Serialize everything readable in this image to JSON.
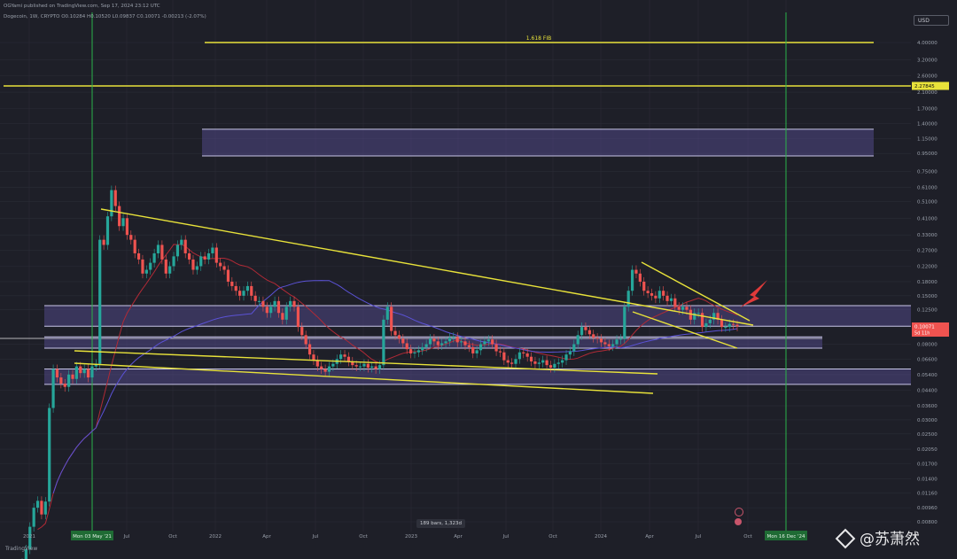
{
  "header": {
    "line1": "OGYami published on TradingView.com, Sep 17, 2024 23:12 UTC",
    "line2": "Dogecoin, 1W, CRYPTO  O0.10284  H0.10520  L0.09837  C0.10071  -0.00213 (-2.07%)"
  },
  "currency": "USD",
  "branding": {
    "tv": "TradingView",
    "watermark": "@苏萧然"
  },
  "badges": {
    "bars_range": "189 bars, 1,323d"
  },
  "colors": {
    "background": "#1e1f28",
    "fib": "#e8e23a",
    "zone": "#5a4f9a",
    "up": "#26a69a",
    "down": "#ef5350",
    "ma_red": "#b02a36",
    "ma_blue": "#5b52d6",
    "marker": "#2bb34a",
    "arrow": "#e03a3a"
  },
  "chart_data": {
    "type": "candlestick",
    "symbol": "Dogecoin",
    "interval": "1W",
    "scale": "log",
    "price_axis_labels": [
      "4.00000",
      "3.20000",
      "2.60000",
      "2.10000",
      "1.70000",
      "1.40000",
      "1.15000",
      "0.95000",
      "0.75000",
      "0.61000",
      "0.51000",
      "0.41000",
      "0.33000",
      "0.27000",
      "0.22000",
      "0.18000",
      "0.15000",
      "0.12500",
      "0.08000",
      "0.06600",
      "0.05400",
      "0.04400",
      "0.03600",
      "0.03000",
      "0.02500",
      "0.02050",
      "0.01700",
      "0.01400",
      "0.01160",
      "0.00960",
      "0.00800"
    ],
    "price_axis_values": [
      4.0,
      3.2,
      2.6,
      2.1,
      1.7,
      1.4,
      1.15,
      0.95,
      0.75,
      0.61,
      0.51,
      0.41,
      0.33,
      0.27,
      0.22,
      0.18,
      0.15,
      0.125,
      0.08,
      0.066,
      0.054,
      0.044,
      0.036,
      0.03,
      0.025,
      0.0205,
      0.017,
      0.014,
      0.0116,
      0.0096,
      0.008
    ],
    "time_axis_labels": [
      "2021",
      "Mon 03 May '21",
      "Jul",
      "Oct",
      "2022",
      "Apr",
      "Jul",
      "Oct",
      "2023",
      "Apr",
      "Jul",
      "Oct",
      "2024",
      "Apr",
      "Jul",
      "Oct",
      "Mon 16 Dec '24"
    ],
    "price_tags": [
      {
        "label": "2.27845",
        "value": 2.27845,
        "color": "#e8e23a"
      },
      {
        "label": "0.10071",
        "sub": "5d 11h",
        "value": 0.10071,
        "color": "#ef5350"
      }
    ],
    "horizontal_levels": [
      {
        "label": "1.618 FIB",
        "value": 4.0,
        "color": "#e8e23a"
      },
      {
        "label": "",
        "value": 2.27845,
        "color": "#e8e23a"
      }
    ],
    "zones": [
      {
        "top": 1.3,
        "bottom": 0.92
      },
      {
        "top": 0.132,
        "bottom": 0.101
      },
      {
        "top": 0.088,
        "bottom": 0.076
      },
      {
        "top": 0.058,
        "bottom": 0.0475
      }
    ],
    "weekly_close": [
      0.0047,
      0.0056,
      0.0075,
      0.0096,
      0.0105,
      0.0088,
      0.0104,
      0.035,
      0.058,
      0.052,
      0.048,
      0.046,
      0.054,
      0.051,
      0.06,
      0.055,
      0.058,
      0.052,
      0.06,
      0.062,
      0.31,
      0.29,
      0.42,
      0.59,
      0.48,
      0.37,
      0.41,
      0.33,
      0.31,
      0.26,
      0.24,
      0.2,
      0.21,
      0.23,
      0.26,
      0.29,
      0.24,
      0.2,
      0.22,
      0.25,
      0.29,
      0.31,
      0.26,
      0.24,
      0.21,
      0.22,
      0.25,
      0.24,
      0.26,
      0.28,
      0.23,
      0.22,
      0.21,
      0.18,
      0.17,
      0.16,
      0.15,
      0.16,
      0.17,
      0.15,
      0.14,
      0.14,
      0.13,
      0.12,
      0.13,
      0.14,
      0.12,
      0.11,
      0.13,
      0.14,
      0.13,
      0.1,
      0.09,
      0.08,
      0.07,
      0.065,
      0.06,
      0.058,
      0.056,
      0.06,
      0.062,
      0.066,
      0.07,
      0.068,
      0.064,
      0.061,
      0.06,
      0.06,
      0.062,
      0.059,
      0.06,
      0.058,
      0.061,
      0.11,
      0.13,
      0.095,
      0.09,
      0.086,
      0.081,
      0.075,
      0.071,
      0.072,
      0.074,
      0.077,
      0.08,
      0.086,
      0.083,
      0.079,
      0.081,
      0.083,
      0.087,
      0.088,
      0.082,
      0.083,
      0.079,
      0.077,
      0.071,
      0.074,
      0.08,
      0.083,
      0.085,
      0.08,
      0.073,
      0.072,
      0.065,
      0.063,
      0.062,
      0.066,
      0.072,
      0.071,
      0.068,
      0.064,
      0.062,
      0.063,
      0.065,
      0.061,
      0.059,
      0.062,
      0.063,
      0.065,
      0.07,
      0.073,
      0.08,
      0.09,
      0.1,
      0.096,
      0.091,
      0.087,
      0.086,
      0.082,
      0.08,
      0.078,
      0.08,
      0.085,
      0.086,
      0.13,
      0.16,
      0.21,
      0.2,
      0.18,
      0.16,
      0.155,
      0.15,
      0.145,
      0.16,
      0.15,
      0.14,
      0.145,
      0.13,
      0.125,
      0.13,
      0.125,
      0.11,
      0.12,
      0.12,
      0.1,
      0.105,
      0.11,
      0.12,
      0.11,
      0.1,
      0.1,
      0.104,
      0.103,
      0.10071
    ]
  }
}
